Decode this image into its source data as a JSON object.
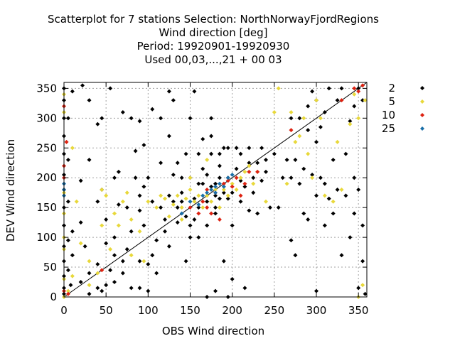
{
  "chart_data": {
    "type": "scatter",
    "title_lines": [
      "Scatterplot for    7 stations Selection: NorthNorwayFjordRegions",
      "Wind direction [deg]",
      "Period: 19920901-19920930",
      "Used  00,03,...,21  + 00 03"
    ],
    "xlabel": "OBS Wind direction",
    "ylabel": "DEV Wind direction",
    "xlim": [
      0,
      360
    ],
    "ylim": [
      0,
      360
    ],
    "xticks": [
      0,
      50,
      100,
      150,
      200,
      250,
      300,
      350
    ],
    "yticks": [
      0,
      50,
      100,
      150,
      200,
      250,
      300,
      350
    ],
    "grid": true,
    "diagonal_line": true,
    "legend_position": "right",
    "series": [
      {
        "name": "2",
        "color": "#000000",
        "points": [
          [
            0,
            5
          ],
          [
            0,
            15
          ],
          [
            0,
            35
          ],
          [
            0,
            60
          ],
          [
            0,
            85
          ],
          [
            0,
            120
          ],
          [
            0,
            150
          ],
          [
            0,
            180
          ],
          [
            0,
            205
          ],
          [
            0,
            240
          ],
          [
            0,
            270
          ],
          [
            0,
            300
          ],
          [
            0,
            330
          ],
          [
            0,
            350
          ],
          [
            5,
            45
          ],
          [
            5,
            95
          ],
          [
            5,
            160
          ],
          [
            5,
            230
          ],
          [
            5,
            300
          ],
          [
            8,
            20
          ],
          [
            10,
            70
          ],
          [
            10,
            110
          ],
          [
            10,
            345
          ],
          [
            20,
            25
          ],
          [
            20,
            125
          ],
          [
            20,
            195
          ],
          [
            22,
            355
          ],
          [
            25,
            85
          ],
          [
            30,
            330
          ],
          [
            30,
            230
          ],
          [
            30,
            40
          ],
          [
            30,
            5
          ],
          [
            40,
            55
          ],
          [
            40,
            15
          ],
          [
            40,
            160
          ],
          [
            40,
            290
          ],
          [
            45,
            300
          ],
          [
            45,
            180
          ],
          [
            45,
            10
          ],
          [
            50,
            90
          ],
          [
            50,
            130
          ],
          [
            50,
            20
          ],
          [
            55,
            45
          ],
          [
            55,
            350
          ],
          [
            60,
            70
          ],
          [
            60,
            200
          ],
          [
            60,
            100
          ],
          [
            60,
            25
          ],
          [
            65,
            210
          ],
          [
            65,
            155
          ],
          [
            70,
            310
          ],
          [
            70,
            40
          ],
          [
            70,
            60
          ],
          [
            75,
            150
          ],
          [
            75,
            80
          ],
          [
            80,
            110
          ],
          [
            80,
            300
          ],
          [
            80,
            15
          ],
          [
            85,
            200
          ],
          [
            85,
            245
          ],
          [
            90,
            15
          ],
          [
            90,
            145
          ],
          [
            90,
            170
          ],
          [
            90,
            295
          ],
          [
            90,
            60
          ],
          [
            95,
            120
          ],
          [
            95,
            185
          ],
          [
            95,
            255
          ],
          [
            100,
            200
          ],
          [
            100,
            55
          ],
          [
            100,
            10
          ],
          [
            105,
            70
          ],
          [
            105,
            160
          ],
          [
            105,
            315
          ],
          [
            110,
            95
          ],
          [
            110,
            40
          ],
          [
            115,
            150
          ],
          [
            115,
            300
          ],
          [
            115,
            225
          ],
          [
            120,
            130
          ],
          [
            120,
            110
          ],
          [
            125,
            170
          ],
          [
            125,
            85
          ],
          [
            125,
            270
          ],
          [
            125,
            345
          ],
          [
            130,
            160
          ],
          [
            130,
            205
          ],
          [
            130,
            330
          ],
          [
            135,
            150
          ],
          [
            135,
            225
          ],
          [
            135,
            125
          ],
          [
            140,
            175
          ],
          [
            140,
            200
          ],
          [
            140,
            160
          ],
          [
            145,
            135
          ],
          [
            145,
            60
          ],
          [
            145,
            240
          ],
          [
            150,
            120
          ],
          [
            150,
            100
          ],
          [
            150,
            200
          ],
          [
            150,
            300
          ],
          [
            155,
            165
          ],
          [
            155,
            345
          ],
          [
            155,
            130
          ],
          [
            160,
            240
          ],
          [
            160,
            190
          ],
          [
            160,
            150
          ],
          [
            160,
            100
          ],
          [
            165,
            190
          ],
          [
            165,
            215
          ],
          [
            165,
            265
          ],
          [
            170,
            205
          ],
          [
            170,
            160
          ],
          [
            170,
            120
          ],
          [
            170,
            0
          ],
          [
            175,
            185
          ],
          [
            175,
            240
          ],
          [
            175,
            270
          ],
          [
            175,
            300
          ],
          [
            180,
            190
          ],
          [
            180,
            150
          ],
          [
            180,
            140
          ],
          [
            180,
            170
          ],
          [
            180,
            10
          ],
          [
            185,
            200
          ],
          [
            185,
            220
          ],
          [
            185,
            240
          ],
          [
            185,
            165
          ],
          [
            190,
            175
          ],
          [
            190,
            250
          ],
          [
            190,
            60
          ],
          [
            195,
            165
          ],
          [
            195,
            200
          ],
          [
            195,
            250
          ],
          [
            195,
            0
          ],
          [
            200,
            120
          ],
          [
            200,
            175
          ],
          [
            200,
            30
          ],
          [
            205,
            215
          ],
          [
            205,
            250
          ],
          [
            210,
            195
          ],
          [
            210,
            160
          ],
          [
            210,
            240
          ],
          [
            215,
            185
          ],
          [
            215,
            15
          ],
          [
            220,
            225
          ],
          [
            220,
            250
          ],
          [
            220,
            145
          ],
          [
            225,
            200
          ],
          [
            225,
            175
          ],
          [
            230,
            225
          ],
          [
            230,
            140
          ],
          [
            235,
            250
          ],
          [
            235,
            195
          ],
          [
            240,
            210
          ],
          [
            240,
            230
          ],
          [
            245,
            150
          ],
          [
            250,
            240
          ],
          [
            255,
            150
          ],
          [
            260,
            200
          ],
          [
            265,
            230
          ],
          [
            270,
            200
          ],
          [
            270,
            300
          ],
          [
            270,
            95
          ],
          [
            275,
            230
          ],
          [
            275,
            70
          ],
          [
            280,
            300
          ],
          [
            280,
            190
          ],
          [
            285,
            140
          ],
          [
            285,
            215
          ],
          [
            290,
            280
          ],
          [
            290,
            320
          ],
          [
            290,
            130
          ],
          [
            295,
            205
          ],
          [
            295,
            345
          ],
          [
            300,
            330
          ],
          [
            300,
            260
          ],
          [
            300,
            170
          ],
          [
            300,
            10
          ],
          [
            305,
            285
          ],
          [
            305,
            200
          ],
          [
            310,
            190
          ],
          [
            310,
            310
          ],
          [
            310,
            120
          ],
          [
            315,
            350
          ],
          [
            315,
            165
          ],
          [
            320,
            230
          ],
          [
            320,
            140
          ],
          [
            325,
            330
          ],
          [
            325,
            180
          ],
          [
            330,
            350
          ],
          [
            330,
            70
          ],
          [
            335,
            240
          ],
          [
            335,
            170
          ],
          [
            340,
            100
          ],
          [
            340,
            295
          ],
          [
            345,
            140
          ],
          [
            345,
            200
          ],
          [
            345,
            320
          ],
          [
            350,
            350
          ],
          [
            350,
            15
          ],
          [
            350,
            180
          ],
          [
            355,
            120
          ],
          [
            355,
            60
          ],
          [
            355,
            330
          ],
          [
            358,
            5
          ]
        ]
      },
      {
        "name": "5",
        "color": "#e8d83a",
        "points": [
          [
            0,
            0
          ],
          [
            0,
            30
          ],
          [
            0,
            80
          ],
          [
            0,
            100
          ],
          [
            0,
            140
          ],
          [
            0,
            175
          ],
          [
            0,
            310
          ],
          [
            0,
            340
          ],
          [
            5,
            10
          ],
          [
            10,
            35
          ],
          [
            10,
            250
          ],
          [
            15,
            160
          ],
          [
            20,
            90
          ],
          [
            30,
            20
          ],
          [
            30,
            60
          ],
          [
            40,
            40
          ],
          [
            45,
            180
          ],
          [
            45,
            120
          ],
          [
            50,
            170
          ],
          [
            55,
            80
          ],
          [
            60,
            140
          ],
          [
            65,
            120
          ],
          [
            70,
            160
          ],
          [
            75,
            175
          ],
          [
            80,
            130
          ],
          [
            80,
            70
          ],
          [
            90,
            110
          ],
          [
            95,
            60
          ],
          [
            100,
            160
          ],
          [
            110,
            150
          ],
          [
            115,
            170
          ],
          [
            120,
            165
          ],
          [
            125,
            135
          ],
          [
            130,
            155
          ],
          [
            135,
            170
          ],
          [
            140,
            150
          ],
          [
            140,
            130
          ],
          [
            145,
            165
          ],
          [
            150,
            180
          ],
          [
            150,
            200
          ],
          [
            155,
            160
          ],
          [
            160,
            170
          ],
          [
            165,
            150
          ],
          [
            170,
            170
          ],
          [
            170,
            230
          ],
          [
            175,
            160
          ],
          [
            180,
            180
          ],
          [
            185,
            150
          ],
          [
            190,
            180
          ],
          [
            195,
            170
          ],
          [
            200,
            190
          ],
          [
            205,
            180
          ],
          [
            210,
            200
          ],
          [
            215,
            210
          ],
          [
            220,
            220
          ],
          [
            225,
            190
          ],
          [
            230,
            210
          ],
          [
            240,
            160
          ],
          [
            250,
            310
          ],
          [
            255,
            350
          ],
          [
            265,
            190
          ],
          [
            270,
            310
          ],
          [
            275,
            260
          ],
          [
            280,
            270
          ],
          [
            285,
            300
          ],
          [
            290,
            240
          ],
          [
            295,
            200
          ],
          [
            300,
            330
          ],
          [
            305,
            300
          ],
          [
            310,
            170
          ],
          [
            320,
            160
          ],
          [
            325,
            260
          ],
          [
            330,
            180
          ],
          [
            340,
            290
          ],
          [
            345,
            340
          ],
          [
            350,
            0
          ],
          [
            350,
            300
          ],
          [
            355,
            20
          ],
          [
            358,
            330
          ]
        ]
      },
      {
        "name": "10",
        "color": "#dd2211",
        "points": [
          [
            0,
            10
          ],
          [
            0,
            200
          ],
          [
            0,
            220
          ],
          [
            0,
            320
          ],
          [
            3,
            260
          ],
          [
            5,
            5
          ],
          [
            45,
            45
          ],
          [
            150,
            150
          ],
          [
            160,
            140
          ],
          [
            165,
            160
          ],
          [
            170,
            150
          ],
          [
            170,
            180
          ],
          [
            175,
            140
          ],
          [
            180,
            175
          ],
          [
            185,
            130
          ],
          [
            190,
            190
          ],
          [
            195,
            195
          ],
          [
            200,
            185
          ],
          [
            205,
            200
          ],
          [
            210,
            170
          ],
          [
            215,
            190
          ],
          [
            220,
            210
          ],
          [
            230,
            210
          ],
          [
            270,
            280
          ],
          [
            330,
            330
          ],
          [
            345,
            350
          ],
          [
            350,
            345
          ],
          [
            355,
            355
          ]
        ]
      },
      {
        "name": "25",
        "color": "#1a6fa8",
        "points": [
          [
            0,
            170
          ],
          [
            0,
            180
          ],
          [
            0,
            190
          ],
          [
            140,
            140
          ],
          [
            150,
            160
          ],
          [
            160,
            155
          ],
          [
            165,
            170
          ],
          [
            170,
            175
          ],
          [
            175,
            180
          ],
          [
            180,
            185
          ],
          [
            180,
            175
          ],
          [
            185,
            190
          ],
          [
            190,
            185
          ],
          [
            195,
            200
          ],
          [
            200,
            205
          ]
        ]
      }
    ]
  }
}
